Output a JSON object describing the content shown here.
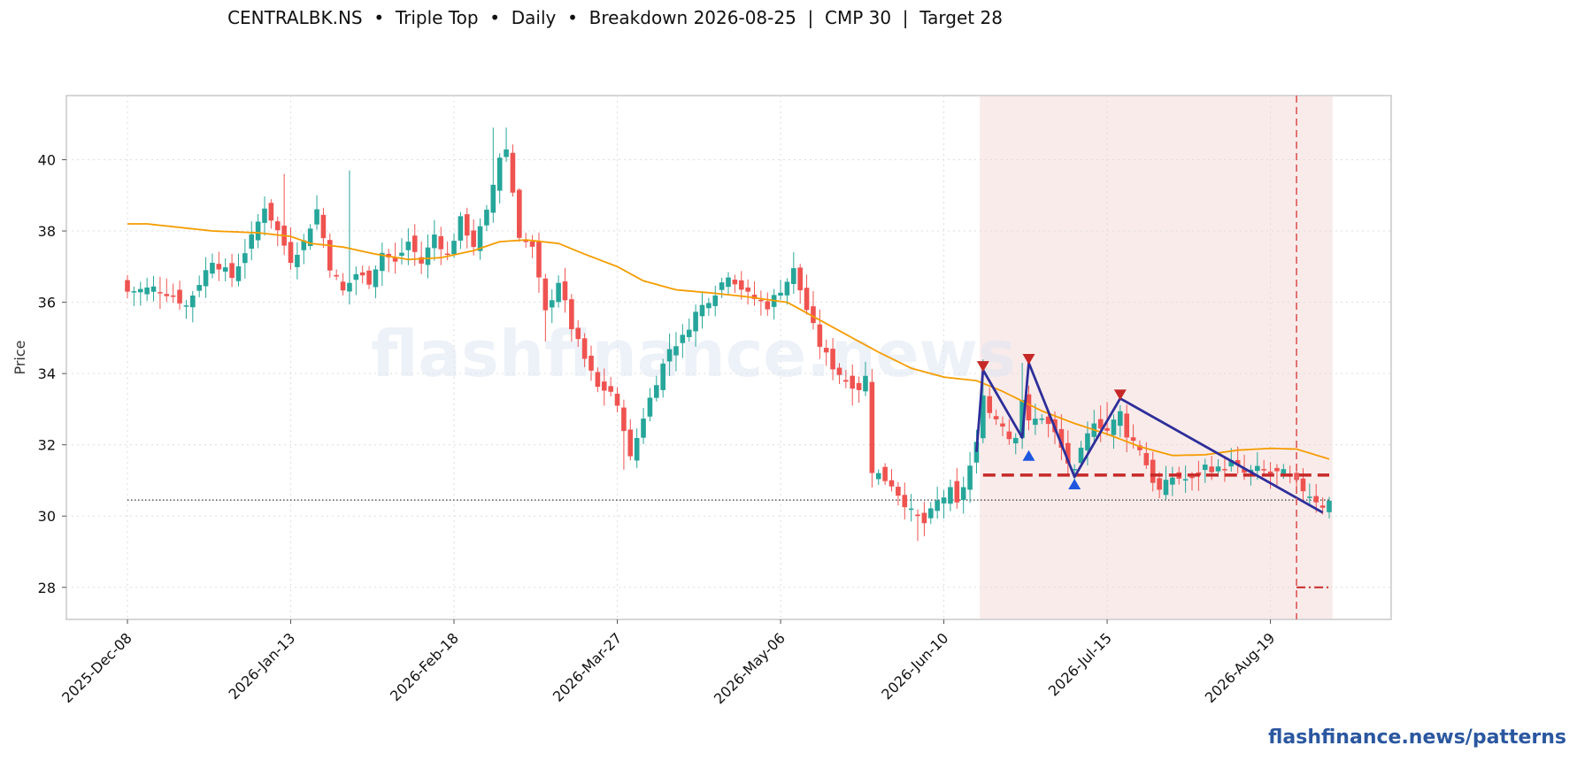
{
  "title": "CENTRALBK.NS  •  Triple Top  •  Daily  •  Breakdown 2026-08-25  |  CMP 30  |  Target 28",
  "footer": "flashfinance.news/patterns",
  "watermark": "flashfinance.news",
  "colors": {
    "up": "#26a69a",
    "down": "#ef5350",
    "ma": "#f59c00",
    "pattern_line": "#2e2e9a",
    "neckline": "#c62828",
    "peak_marker": "#c62828",
    "trough_marker": "#1e56e0",
    "pattern_zone": "#f4d7d5",
    "watermark": "#dfe6f3"
  },
  "chart_data": {
    "type": "candlestick",
    "ylabel": "Price",
    "ylim": [
      27.1,
      41.8
    ],
    "yticks": [
      28,
      30,
      32,
      34,
      36,
      38,
      40
    ],
    "grid": true,
    "n_bars": 185,
    "x_tick_labels": [
      {
        "index": 0,
        "label": "2025-Dec-08"
      },
      {
        "index": 25,
        "label": "2026-Jan-13"
      },
      {
        "index": 50,
        "label": "2026-Feb-18"
      },
      {
        "index": 75,
        "label": "2026-Mar-27"
      },
      {
        "index": 100,
        "label": "2026-May-06"
      },
      {
        "index": 125,
        "label": "2026-Jun-10"
      },
      {
        "index": 150,
        "label": "2026-Jul-15"
      },
      {
        "index": 175,
        "label": "2026-Aug-19"
      }
    ],
    "close_anchors": [
      [
        0,
        36.3
      ],
      [
        4,
        36.4
      ],
      [
        7,
        36.2
      ],
      [
        9,
        35.9
      ],
      [
        13,
        37.2
      ],
      [
        16,
        36.7
      ],
      [
        19,
        37.8
      ],
      [
        21,
        38.7
      ],
      [
        23,
        38.0
      ],
      [
        25,
        37.2
      ],
      [
        27,
        37.7
      ],
      [
        29,
        38.6
      ],
      [
        31,
        37.0
      ],
      [
        33,
        36.3
      ],
      [
        35,
        36.8
      ],
      [
        37,
        36.6
      ],
      [
        39,
        37.4
      ],
      [
        41,
        37.1
      ],
      [
        43,
        37.7
      ],
      [
        45,
        37.1
      ],
      [
        47,
        37.9
      ],
      [
        49,
        37.3
      ],
      [
        51,
        38.3
      ],
      [
        53,
        37.6
      ],
      [
        55,
        38.5
      ],
      [
        57,
        40.1
      ],
      [
        58,
        40.3
      ],
      [
        60,
        37.9
      ],
      [
        62,
        37.5
      ],
      [
        64,
        35.7
      ],
      [
        66,
        36.6
      ],
      [
        68,
        35.3
      ],
      [
        70,
        34.4
      ],
      [
        72,
        33.6
      ],
      [
        74,
        33.5
      ],
      [
        76,
        32.5
      ],
      [
        77,
        31.6
      ],
      [
        79,
        32.8
      ],
      [
        81,
        33.8
      ],
      [
        83,
        34.7
      ],
      [
        85,
        35.0
      ],
      [
        87,
        35.7
      ],
      [
        90,
        36.3
      ],
      [
        92,
        36.8
      ],
      [
        95,
        36.2
      ],
      [
        98,
        35.9
      ],
      [
        101,
        36.6
      ],
      [
        102,
        36.9
      ],
      [
        104,
        35.8
      ],
      [
        106,
        34.8
      ],
      [
        108,
        34.2
      ],
      [
        110,
        33.8
      ],
      [
        112,
        33.6
      ],
      [
        113,
        33.9
      ],
      [
        114,
        31.3
      ],
      [
        117,
        30.9
      ],
      [
        120,
        30.1
      ],
      [
        122,
        29.8
      ],
      [
        124,
        30.4
      ],
      [
        126,
        30.7
      ],
      [
        127,
        30.3
      ],
      [
        129,
        31.4
      ],
      [
        130,
        32.0
      ],
      [
        131,
        33.5
      ],
      [
        132,
        32.9
      ],
      [
        134,
        32.6
      ],
      [
        135,
        32.2
      ],
      [
        136,
        32.3
      ],
      [
        137,
        33.3
      ],
      [
        138,
        32.6
      ],
      [
        140,
        32.8
      ],
      [
        142,
        32.3
      ],
      [
        144,
        31.5
      ],
      [
        145,
        31.2
      ],
      [
        146,
        31.8
      ],
      [
        148,
        32.7
      ],
      [
        150,
        32.4
      ],
      [
        152,
        32.9
      ],
      [
        153,
        32.3
      ],
      [
        155,
        31.9
      ],
      [
        157,
        31.0
      ],
      [
        158,
        30.7
      ],
      [
        160,
        31.1
      ],
      [
        163,
        31.0
      ],
      [
        165,
        31.4
      ],
      [
        167,
        31.3
      ],
      [
        169,
        31.5
      ],
      [
        171,
        31.2
      ],
      [
        173,
        31.3
      ],
      [
        175,
        31.2
      ],
      [
        177,
        31.2
      ],
      [
        179,
        30.9
      ],
      [
        181,
        30.6
      ],
      [
        183,
        30.3
      ],
      [
        184,
        30.4
      ]
    ],
    "high_spikes": [
      [
        24,
        39.6
      ],
      [
        34,
        39.7
      ],
      [
        56,
        40.9
      ],
      [
        58,
        40.9
      ],
      [
        60,
        39.2
      ],
      [
        102,
        37.4
      ],
      [
        131,
        34.4
      ],
      [
        137,
        34.3
      ],
      [
        150,
        33.2
      ]
    ],
    "low_spikes": [
      [
        64,
        34.9
      ],
      [
        76,
        31.3
      ],
      [
        111,
        33.1
      ],
      [
        121,
        29.3
      ],
      [
        145,
        30.9
      ],
      [
        158,
        30.5
      ]
    ],
    "ma_anchors": [
      [
        0,
        38.2
      ],
      [
        3,
        38.2
      ],
      [
        8,
        38.1
      ],
      [
        13,
        38.0
      ],
      [
        20,
        37.95
      ],
      [
        25,
        37.85
      ],
      [
        28,
        37.65
      ],
      [
        33,
        37.55
      ],
      [
        38,
        37.35
      ],
      [
        43,
        37.2
      ],
      [
        48,
        37.25
      ],
      [
        53,
        37.45
      ],
      [
        57,
        37.7
      ],
      [
        61,
        37.75
      ],
      [
        66,
        37.65
      ],
      [
        70,
        37.35
      ],
      [
        75,
        37.0
      ],
      [
        79,
        36.6
      ],
      [
        84,
        36.35
      ],
      [
        90,
        36.25
      ],
      [
        95,
        36.15
      ],
      [
        101,
        36.0
      ],
      [
        105,
        35.6
      ],
      [
        110,
        35.1
      ],
      [
        115,
        34.6
      ],
      [
        120,
        34.15
      ],
      [
        125,
        33.9
      ],
      [
        130,
        33.8
      ],
      [
        134,
        33.5
      ],
      [
        140,
        32.95
      ],
      [
        145,
        32.6
      ],
      [
        150,
        32.3
      ],
      [
        155,
        31.95
      ],
      [
        160,
        31.7
      ],
      [
        165,
        31.72
      ],
      [
        170,
        31.85
      ],
      [
        175,
        31.9
      ],
      [
        179,
        31.88
      ],
      [
        184,
        31.6
      ]
    ],
    "pattern_zone": {
      "start_index": 131,
      "end_index": 184
    },
    "breakout_index": 179,
    "pattern_path": [
      [
        130,
        31.8
      ],
      [
        131,
        34.1
      ],
      [
        137,
        32.2
      ],
      [
        138,
        34.3
      ],
      [
        145,
        31.1
      ],
      [
        152,
        33.3
      ],
      [
        183,
        30.1
      ]
    ],
    "peaks": [
      [
        131,
        34.2
      ],
      [
        138,
        34.4
      ],
      [
        152,
        33.4
      ]
    ],
    "troughs": [
      [
        138,
        31.7
      ],
      [
        145,
        30.9
      ]
    ],
    "neckline": {
      "value": 31.15,
      "start_index": 131,
      "end_index": 184
    },
    "support_line": {
      "value": 30.45,
      "start_index": 0,
      "end_index": 184
    },
    "target": {
      "value": 28.0,
      "start_index": 179,
      "end_index": 184
    },
    "cmp": 30,
    "breakdown_date": "2026-08-25"
  }
}
